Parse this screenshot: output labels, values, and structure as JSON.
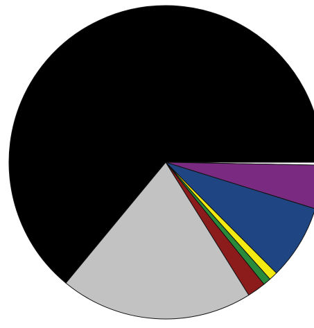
{
  "chart_data": {
    "type": "pie",
    "start_angle_deg": 0,
    "direction": "clockwise",
    "legend": "none",
    "title": "",
    "slices": [
      {
        "value": 0.3,
        "color": "#ffffff"
      },
      {
        "value": 4.5,
        "color": "#7a2a80"
      },
      {
        "value": 7.7,
        "color": "#1f4582"
      },
      {
        "value": 0.9,
        "color": "#f2ea10"
      },
      {
        "value": 0.8,
        "color": "#2a8a3c"
      },
      {
        "value": 1.9,
        "color": "#8c1c1c"
      },
      {
        "value": 19.9,
        "color": "#c2c2c2"
      },
      {
        "value": 64.0,
        "color": "#000000"
      }
    ]
  }
}
